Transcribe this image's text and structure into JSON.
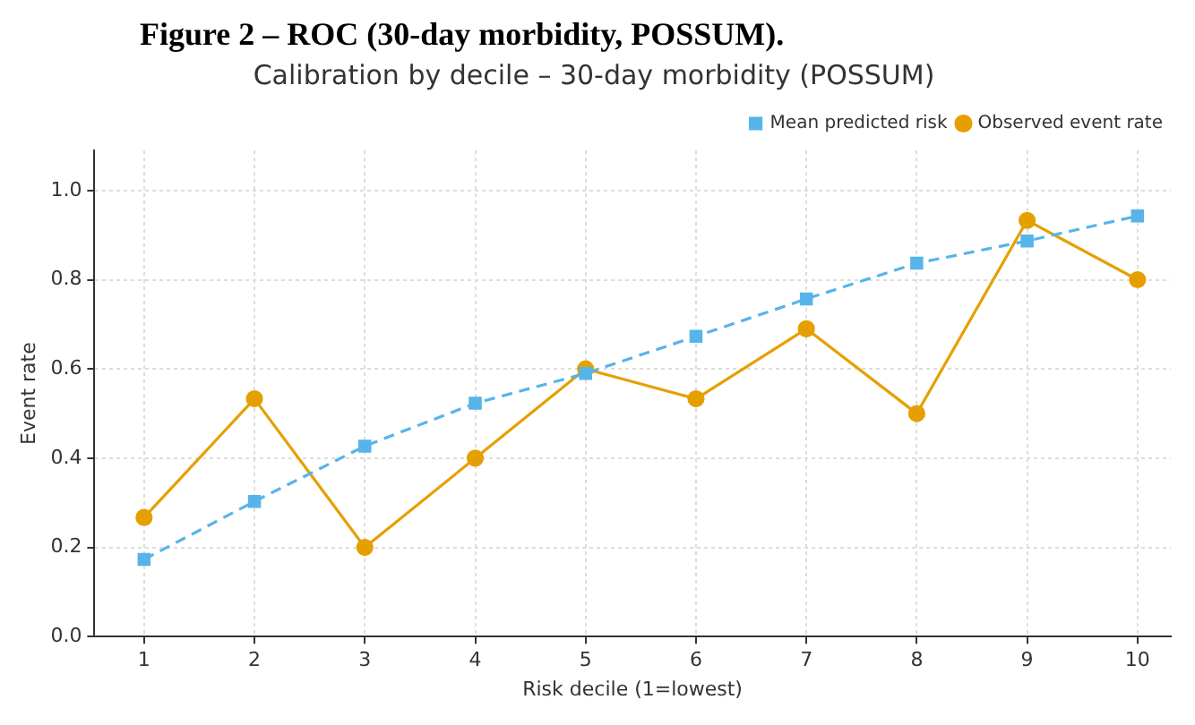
{
  "chart_data": {
    "type": "line",
    "title": "Calibration by decile – 30-day morbidity (POSSUM)",
    "annotations": [
      "Figure 2 – ROC (30-day morbidity, POSSUM)."
    ],
    "xlabel": "Risk decile (1=lowest)",
    "ylabel": "Event rate",
    "x": [
      1,
      2,
      3,
      4,
      5,
      6,
      7,
      8,
      9,
      10
    ],
    "series": [
      {
        "name": "Observed event rate",
        "color": "#e69f00",
        "marker": "circle",
        "line_style": "solid",
        "values": [
          0.267,
          0.533,
          0.2,
          0.4,
          0.6,
          0.533,
          0.69,
          0.5,
          0.933,
          0.8
        ]
      },
      {
        "name": "Mean predicted risk",
        "color": "#56b4e9",
        "marker": "square",
        "line_style": "dashed",
        "values": [
          0.173,
          0.303,
          0.427,
          0.523,
          0.59,
          0.673,
          0.757,
          0.837,
          0.887,
          0.943
        ]
      }
    ],
    "xlim": [
      0.55,
      10.3
    ],
    "xticks": [
      1,
      2,
      3,
      4,
      5,
      6,
      7,
      8,
      9,
      10
    ],
    "ylim": [
      0,
      1.09
    ],
    "yticks": [
      {
        "value": 0,
        "label": "0.0"
      },
      {
        "value": 0.2,
        "label": "0.2"
      },
      {
        "value": 0.4,
        "label": "0.4"
      },
      {
        "value": 0.6,
        "label": "0.6"
      },
      {
        "value": 0.8,
        "label": "0.8"
      },
      {
        "value": 1.0,
        "label": "1.0"
      }
    ],
    "grid": true,
    "legend": "top right"
  }
}
